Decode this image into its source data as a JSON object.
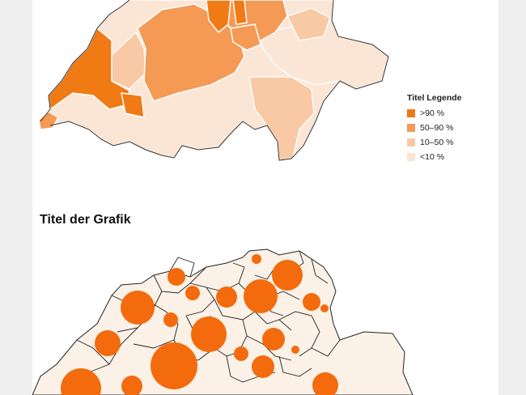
{
  "top_map": {
    "legend": {
      "title": "Titel Legende",
      "items": [
        {
          "label": ">90 %",
          "color": "#f07a14"
        },
        {
          "label": "50–90 %",
          "color": "#f49a55"
        },
        {
          "label": "10–50 %",
          "color": "#f8c9a4"
        },
        {
          "label": "<10 %",
          "color": "#fbe5d4"
        }
      ]
    }
  },
  "bottom_map": {
    "title": "Titel der Grafik",
    "bubble_color": "#f36b0d",
    "base_color": "#fbf1e7"
  }
}
